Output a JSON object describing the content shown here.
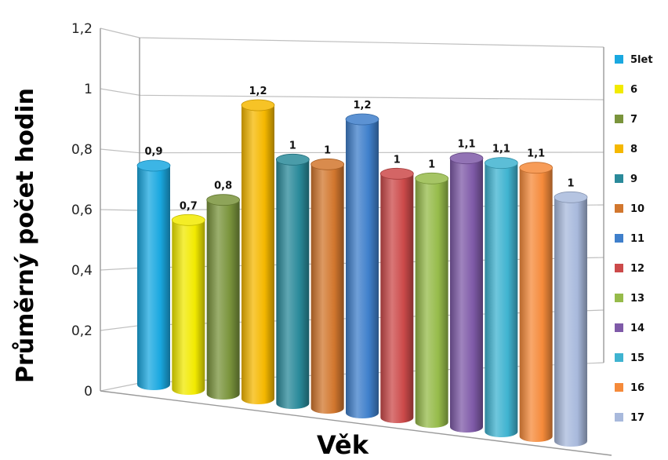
{
  "chart_data": {
    "type": "bar",
    "style": "3d-cylinder",
    "xlabel": "Věk",
    "ylabel": "Průměrný počet hodin",
    "ylim": [
      0,
      1.2
    ],
    "yticks": [
      "0",
      "0,2",
      "0,4",
      "0,6",
      "0,8",
      "1",
      "1,2"
    ],
    "ytick_values": [
      0,
      0.2,
      0.4,
      0.6,
      0.8,
      1.0,
      1.2
    ],
    "grid": true,
    "legend_position": "right",
    "series": [
      {
        "name": "5let",
        "value": 0.9,
        "label": "0,9",
        "color": "#1aa8e0"
      },
      {
        "name": "6",
        "value": 0.7,
        "label": "0,7",
        "color": "#f2ea00"
      },
      {
        "name": "7",
        "value": 0.8,
        "label": "0,8",
        "color": "#7a943c"
      },
      {
        "name": "8",
        "value": 1.2,
        "label": "1,2",
        "color": "#f5b800"
      },
      {
        "name": "9",
        "value": 1.0,
        "label": "1",
        "color": "#2a8a9a"
      },
      {
        "name": "10",
        "value": 1.0,
        "label": "1",
        "color": "#d2772e"
      },
      {
        "name": "11",
        "value": 1.2,
        "label": "1,2",
        "color": "#3f7fcb"
      },
      {
        "name": "12",
        "value": 1.0,
        "label": "1",
        "color": "#cc4a4a"
      },
      {
        "name": "13",
        "value": 1.0,
        "label": "1",
        "color": "#96bb4a"
      },
      {
        "name": "14",
        "value": 1.1,
        "label": "1,1",
        "color": "#7f5aa8"
      },
      {
        "name": "15",
        "value": 1.1,
        "label": "1,1",
        "color": "#3fb3d0"
      },
      {
        "name": "16",
        "value": 1.1,
        "label": "1,1",
        "color": "#f58a3a"
      },
      {
        "name": "17",
        "value": 1.0,
        "label": "1",
        "color": "#a8b9dc"
      }
    ]
  }
}
